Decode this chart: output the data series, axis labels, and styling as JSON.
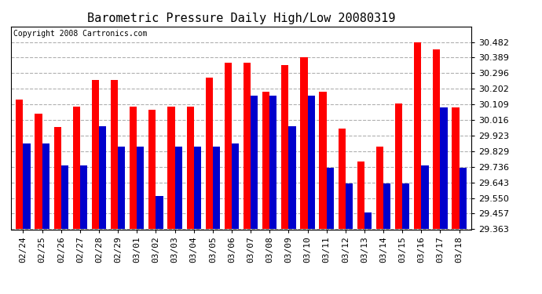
{
  "title": "Barometric Pressure Daily High/Low 20080319",
  "copyright": "Copyright 2008 Cartronics.com",
  "dates": [
    "02/24",
    "02/25",
    "02/26",
    "02/27",
    "02/28",
    "02/29",
    "03/01",
    "03/02",
    "03/03",
    "03/04",
    "03/05",
    "03/06",
    "03/07",
    "03/08",
    "03/09",
    "03/10",
    "03/11",
    "03/12",
    "03/13",
    "03/14",
    "03/15",
    "03/16",
    "03/17",
    "03/18"
  ],
  "highs": [
    30.14,
    30.055,
    29.975,
    30.095,
    30.255,
    30.255,
    30.095,
    30.075,
    30.095,
    30.095,
    30.27,
    30.36,
    30.36,
    30.185,
    30.345,
    30.39,
    30.185,
    29.965,
    29.77,
    29.855,
    30.115,
    30.48,
    30.44,
    30.09
  ],
  "lows": [
    29.875,
    29.875,
    29.745,
    29.745,
    29.98,
    29.855,
    29.855,
    29.56,
    29.855,
    29.855,
    29.855,
    29.875,
    30.16,
    30.16,
    29.98,
    30.16,
    29.73,
    29.635,
    29.465,
    29.635,
    29.635,
    29.745,
    30.09,
    29.73
  ],
  "high_color": "#ff0000",
  "low_color": "#0000cc",
  "bg_color": "#ffffff",
  "plot_bg_color": "#ffffff",
  "grid_color": "#b0b0b0",
  "ymin": 29.363,
  "ymax": 30.575,
  "yticks": [
    29.363,
    29.457,
    29.55,
    29.643,
    29.736,
    29.829,
    29.923,
    30.016,
    30.109,
    30.202,
    30.296,
    30.389,
    30.482
  ],
  "title_fontsize": 11,
  "tick_fontsize": 8,
  "copyright_fontsize": 7
}
